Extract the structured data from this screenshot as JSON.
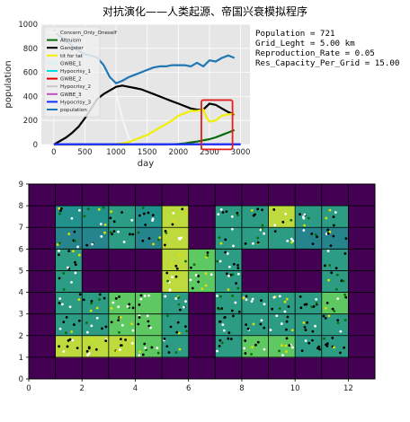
{
  "figure": {
    "title": "对抗演化——人类起源、帝国兴衰模拟程序",
    "stats": [
      "Population = 721",
      "Grid_Leght = 5.00 km",
      "Reproduction_Rate = 0.05",
      "Res_Capacity_Per_Grid = 15.00"
    ]
  },
  "chart_data": [
    {
      "type": "line",
      "xlabel": "day",
      "ylabel": "population",
      "xlim": [
        -200,
        3150
      ],
      "ylim": [
        0,
        1000
      ],
      "xticks": [
        0,
        500,
        1000,
        1500,
        2000,
        2500,
        3000
      ],
      "yticks": [
        0,
        200,
        400,
        600,
        800,
        1000
      ],
      "grid": true,
      "legend": "upper-left",
      "highlight_box": {
        "x": [
          2370,
          2870
        ],
        "y": [
          -40,
          370
        ],
        "color": "#e0201e"
      },
      "series": [
        {
          "name": "Concern_Only_Oneself",
          "color": "#f4f4f4",
          "x": [
            0,
            100,
            200,
            300,
            400,
            500,
            600,
            700,
            800,
            900,
            1000,
            1100,
            1200,
            1300
          ],
          "y": [
            950,
            900,
            860,
            830,
            800,
            770,
            740,
            700,
            640,
            560,
            420,
            220,
            60,
            0
          ]
        },
        {
          "name": "Altruism",
          "color": "#0a6a0a",
          "x": [
            0,
            1800,
            1900,
            2000,
            2100,
            2200,
            2300,
            2400,
            2500,
            2600,
            2700,
            2800,
            2900
          ],
          "y": [
            0,
            0,
            2,
            5,
            10,
            18,
            25,
            35,
            45,
            60,
            80,
            100,
            120
          ]
        },
        {
          "name": "Gangster",
          "color": "#000000",
          "x": [
            0,
            100,
            200,
            300,
            400,
            500,
            600,
            700,
            800,
            900,
            1000,
            1100,
            1200,
            1300,
            1400,
            1500,
            1600,
            1700,
            1800,
            1900,
            2000,
            2100,
            2200,
            2300,
            2400,
            2500,
            2600,
            2700,
            2800,
            2900
          ],
          "y": [
            0,
            30,
            60,
            100,
            150,
            220,
            300,
            380,
            420,
            450,
            480,
            490,
            480,
            470,
            460,
            440,
            420,
            400,
            380,
            360,
            340,
            320,
            300,
            290,
            290,
            340,
            330,
            300,
            270,
            250
          ]
        },
        {
          "name": "tit for tat",
          "color": "#f0f000",
          "x": [
            0,
            900,
            1000,
            1100,
            1200,
            1300,
            1400,
            1500,
            1600,
            1700,
            1800,
            1900,
            2000,
            2100,
            2200,
            2300,
            2400,
            2450,
            2500,
            2600,
            2700,
            2800,
            2900
          ],
          "y": [
            0,
            0,
            5,
            10,
            20,
            40,
            60,
            80,
            110,
            140,
            170,
            200,
            240,
            260,
            280,
            280,
            290,
            230,
            190,
            200,
            240,
            250,
            260
          ]
        },
        {
          "name": "GWBE_1",
          "color": "#d8f0f0",
          "x": [
            0,
            3000
          ],
          "y": [
            2,
            2
          ]
        },
        {
          "name": "Hypocrisy_1",
          "color": "#00e0e0",
          "x": [
            0,
            3000
          ],
          "y": [
            2,
            2
          ]
        },
        {
          "name": "GWBE_2",
          "color": "#e00000",
          "x": [
            0,
            3000
          ],
          "y": [
            2,
            2
          ]
        },
        {
          "name": "Hypocrisy_2",
          "color": "#c8c8c8",
          "x": [
            0,
            3000
          ],
          "y": [
            2,
            2
          ]
        },
        {
          "name": "GWBE_3",
          "color": "#c050c0",
          "x": [
            0,
            3000
          ],
          "y": [
            2,
            2
          ]
        },
        {
          "name": "Hypocrisy_3",
          "color": "#1030ff",
          "x": [
            0,
            3000
          ],
          "y": [
            2,
            2
          ]
        },
        {
          "name": "population",
          "color": "#1f77b4",
          "x": [
            0,
            50,
            100,
            150,
            200,
            300,
            400,
            500,
            600,
            700,
            800,
            900,
            1000,
            1100,
            1200,
            1300,
            1400,
            1500,
            1600,
            1700,
            1800,
            1900,
            2000,
            2100,
            2200,
            2300,
            2400,
            2500,
            2600,
            2700,
            2800,
            2900
          ],
          "y": [
            950,
            920,
            900,
            880,
            860,
            820,
            780,
            750,
            740,
            720,
            660,
            560,
            510,
            530,
            560,
            580,
            600,
            620,
            640,
            650,
            650,
            660,
            660,
            660,
            650,
            680,
            650,
            700,
            690,
            720,
            740,
            720
          ]
        }
      ]
    },
    {
      "type": "heatmap",
      "xlim": [
        0,
        13
      ],
      "ylim": [
        0,
        9
      ],
      "xticks": [
        0,
        2,
        4,
        6,
        8,
        10,
        12
      ],
      "yticks": [
        0,
        1,
        2,
        3,
        4,
        5,
        6,
        7,
        8,
        9
      ],
      "colormap": "viridis",
      "cells": [
        [
          0,
          0,
          0,
          0,
          0,
          0,
          0,
          0,
          0,
          0,
          0,
          0,
          0
        ],
        [
          0,
          0.9,
          0.9,
          0.9,
          0.75,
          0.55,
          0,
          0.55,
          0.75,
          0.75,
          0.55,
          0.55,
          0
        ],
        [
          0,
          0.55,
          0.55,
          0.75,
          0.75,
          0.55,
          0,
          0.55,
          0.55,
          0.55,
          0.55,
          0.55,
          0
        ],
        [
          0,
          0.55,
          0.55,
          0.75,
          0.75,
          0.55,
          0,
          0.55,
          0.55,
          0.55,
          0.55,
          0.75,
          0
        ],
        [
          0,
          0.55,
          0,
          0,
          0,
          0.9,
          0.75,
          0.55,
          0,
          0,
          0,
          0.55,
          0
        ],
        [
          0,
          0.55,
          0,
          0,
          0,
          0.9,
          0.75,
          0.55,
          0,
          0,
          0,
          0.55,
          0
        ],
        [
          0,
          0.45,
          0.45,
          0.55,
          0.45,
          0.9,
          0,
          0.55,
          0.55,
          0.55,
          0.45,
          0.45,
          0
        ],
        [
          0,
          0.5,
          0.5,
          0.55,
          0.5,
          0.9,
          0,
          0.55,
          0.55,
          0.9,
          0.55,
          0.55,
          0
        ],
        [
          0,
          0,
          0,
          0,
          0,
          0,
          0,
          0,
          0,
          0,
          0,
          0,
          0
        ]
      ]
    }
  ]
}
